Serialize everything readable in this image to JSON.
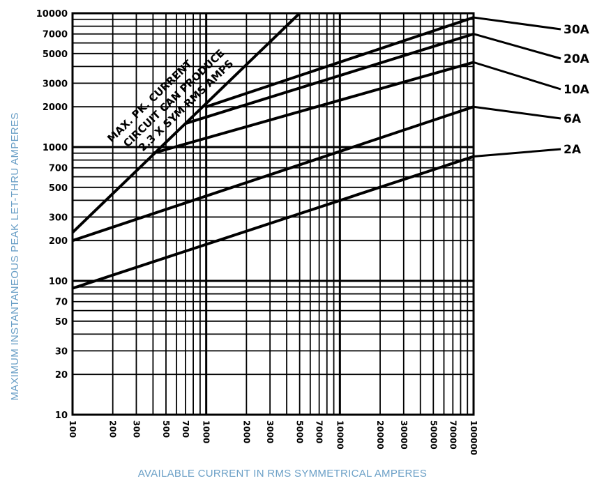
{
  "chart_data": {
    "type": "line",
    "x_scale": "log",
    "y_scale": "log",
    "xlim": [
      100,
      100000
    ],
    "ylim": [
      10,
      10000
    ],
    "xlabel": "AVAILABLE CURRENT IN RMS SYMMETRICAL AMPERES",
    "ylabel": "MAXIMUM INSTANTANEOUS PEAK LET-THRU AMPERES",
    "x_ticks": [
      "100",
      "200",
      "300",
      "500",
      "700",
      "1000",
      "2000",
      "3000",
      "5000",
      "7000",
      "10000",
      "20000",
      "30000",
      "50000",
      "70000",
      "100000"
    ],
    "y_ticks": [
      "10000",
      "7000",
      "5000",
      "3000",
      "2000",
      "1000",
      "700",
      "500",
      "300",
      "200",
      "100",
      "70",
      "50",
      "30",
      "20",
      "10"
    ],
    "series": [
      {
        "name": "30A",
        "x": [
          1000,
          100000
        ],
        "y": [
          2000,
          9300
        ]
      },
      {
        "name": "20A",
        "x": [
          700,
          100000
        ],
        "y": [
          1500,
          7000
        ]
      },
      {
        "name": "10A",
        "x": [
          400,
          100000
        ],
        "y": [
          900,
          4300
        ]
      },
      {
        "name": "6A",
        "x": [
          100,
          100000
        ],
        "y": [
          200,
          2000
        ]
      },
      {
        "name": "2A",
        "x": [
          100,
          100000
        ],
        "y": [
          88,
          850
        ]
      }
    ],
    "reference_line": {
      "x": [
        100,
        5000
      ],
      "y": [
        230,
        10000
      ]
    },
    "annotation": [
      "MAX. PK. CURRENT",
      "CIRCUIT CAN PRODUCE",
      "2.3 X SYM RMS AMPS"
    ],
    "grid": true
  }
}
